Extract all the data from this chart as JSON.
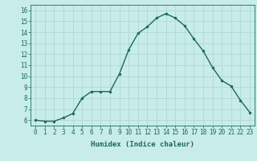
{
  "x": [
    0,
    1,
    2,
    3,
    4,
    5,
    6,
    7,
    8,
    9,
    10,
    11,
    12,
    13,
    14,
    15,
    16,
    17,
    18,
    19,
    20,
    21,
    22,
    23
  ],
  "y": [
    6.0,
    5.9,
    5.9,
    6.2,
    6.6,
    8.0,
    8.6,
    8.6,
    8.6,
    10.2,
    12.4,
    13.9,
    14.5,
    15.3,
    15.7,
    15.3,
    14.6,
    13.4,
    12.3,
    10.8,
    9.6,
    9.1,
    7.8,
    6.7
  ],
  "line_color": "#1a6b5a",
  "marker": "o",
  "marker_size": 2.0,
  "line_width": 1.0,
  "bg_color": "#c8ece8",
  "grid_color": "#b0d8d4",
  "xlabel": "Humidex (Indice chaleur)",
  "ylim": [
    5.5,
    16.5
  ],
  "xlim": [
    -0.5,
    23.5
  ],
  "yticks": [
    6,
    7,
    8,
    9,
    10,
    11,
    12,
    13,
    14,
    15,
    16
  ],
  "xticks": [
    0,
    1,
    2,
    3,
    4,
    5,
    6,
    7,
    8,
    9,
    10,
    11,
    12,
    13,
    14,
    15,
    16,
    17,
    18,
    19,
    20,
    21,
    22,
    23
  ],
  "xtick_labels": [
    "0",
    "1",
    "2",
    "3",
    "4",
    "5",
    "6",
    "7",
    "8",
    "9",
    "10",
    "11",
    "12",
    "13",
    "14",
    "15",
    "16",
    "17",
    "18",
    "19",
    "20",
    "21",
    "22",
    "23"
  ],
  "tick_fontsize": 5.5,
  "label_fontsize": 6.5,
  "axes_color": "#1a6b5a"
}
